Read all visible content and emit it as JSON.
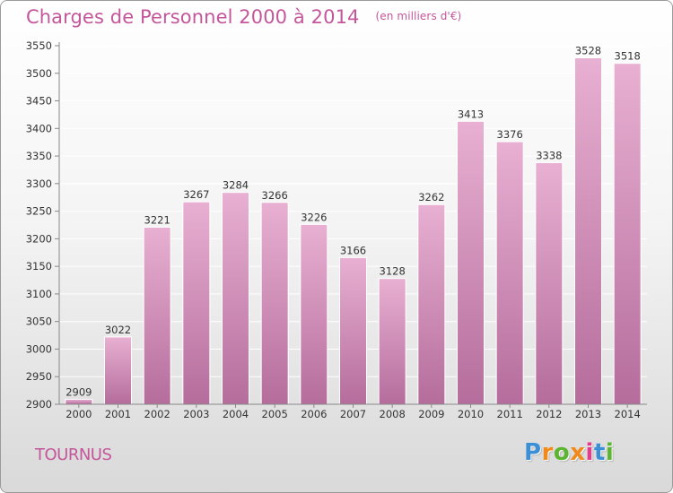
{
  "title": "Charges de Personnel 2000 à 2014",
  "subtitle": "(en milliers d'€)",
  "commune": "TOURNUS",
  "logo": {
    "letters": [
      "P",
      "r",
      "o",
      "x",
      "i",
      "t",
      "i"
    ],
    "colors": [
      "#3a8fd6",
      "#f08a1c",
      "#5cb531",
      "#f08a1c",
      "#e63a8a",
      "#3a8fd6",
      "#5cb531"
    ]
  },
  "colors": {
    "title": "#c4569a",
    "bar_top": "#e8b0d2",
    "bar_bottom": "#b56d9c",
    "axis": "#888888",
    "grid": "#ffffff"
  },
  "chart_data": {
    "type": "bar",
    "title": "Charges de Personnel 2000 à 2014",
    "subtitle": "(en milliers d'€)",
    "categories": [
      "2000",
      "2001",
      "2002",
      "2003",
      "2004",
      "2005",
      "2006",
      "2007",
      "2008",
      "2009",
      "2010",
      "2011",
      "2012",
      "2013",
      "2014"
    ],
    "values": [
      2909,
      3022,
      3221,
      3267,
      3284,
      3266,
      3226,
      3166,
      3128,
      3262,
      3413,
      3376,
      3338,
      3528,
      3518
    ],
    "ylim": [
      2900,
      3550
    ],
    "yticks": [
      2900,
      2950,
      3000,
      3050,
      3100,
      3150,
      3200,
      3250,
      3300,
      3350,
      3400,
      3450,
      3500,
      3550
    ],
    "grid": true,
    "data_labels": true
  }
}
